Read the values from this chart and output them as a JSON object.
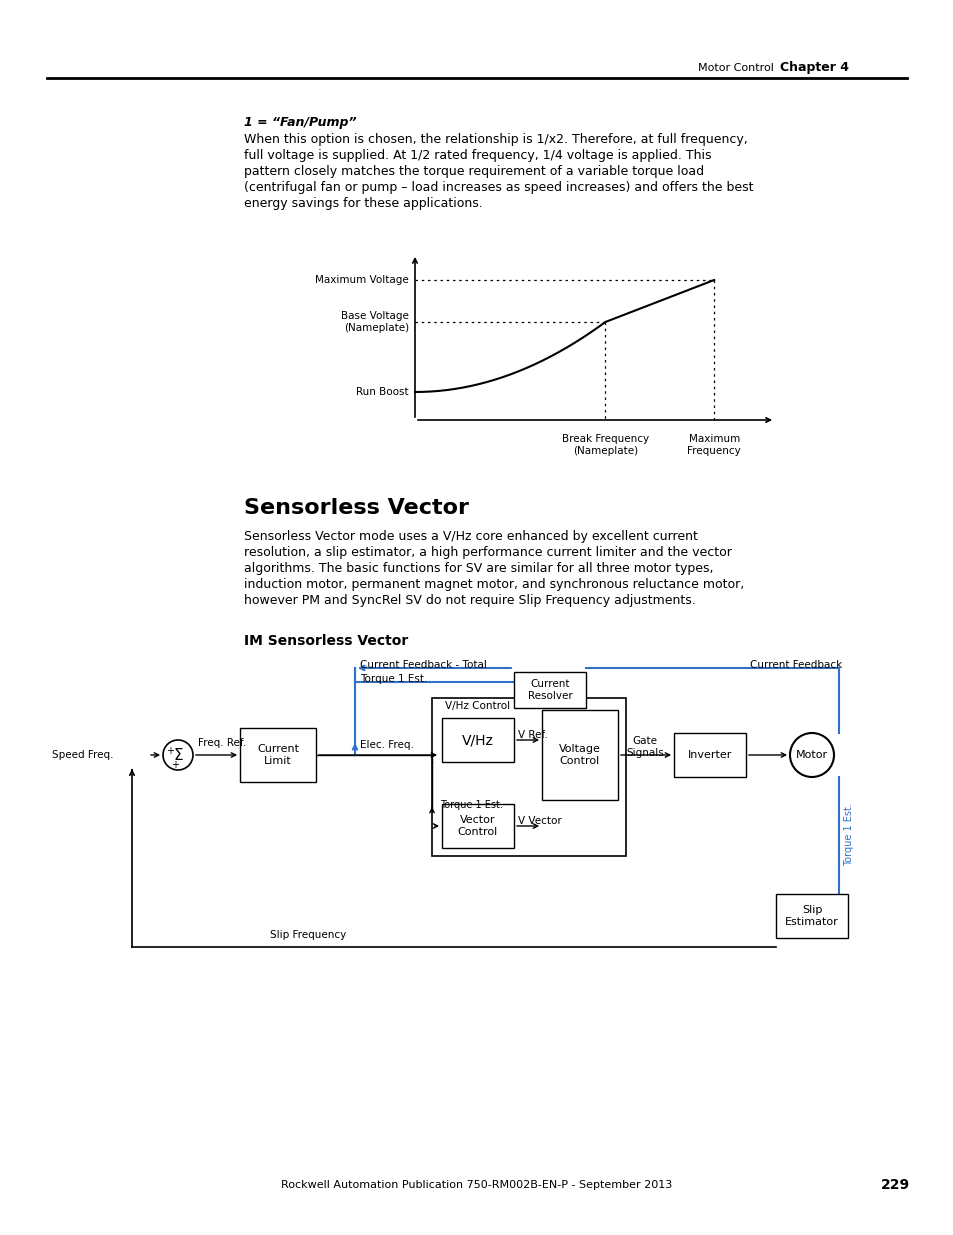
{
  "page_bg": "#ffffff",
  "header_text": "Motor Control",
  "header_bold": "Chapter 4",
  "footer_text": "Rockwell Automation Publication 750-RM002B-EN-P - September 2013",
  "footer_page": "229",
  "section1_title": "1 = “Fan/Pump”",
  "section1_body": "When this option is chosen, the relationship is 1/x2. Therefore, at full frequency,\nfull voltage is supplied. At 1/2 rated frequency, 1/4 voltage is applied. This\npattern closely matches the torque requirement of a variable torque load\n(centrifugal fan or pump – load increases as speed increases) and offers the best\nenergy savings for these applications.",
  "curve_labels": {
    "max_voltage": "Maximum Voltage",
    "base_voltage": "Base Voltage\n(Nameplate)",
    "run_boost": "Run Boost",
    "break_freq": "Break Frequency\n(Nameplate)",
    "max_freq": "Maximum\nFrequency"
  },
  "section2_title": "Sensorless Vector",
  "section2_body": "Sensorless Vector mode uses a V/Hz core enhanced by excellent current\nresolution, a slip estimator, a high performance current limiter and the vector\nalgorithms. The basic functions for SV are similar for all three motor types,\ninduction motor, permanent magnet motor, and synchronous reluctance motor,\nhowever PM and SyncRel SV do not require Slip Frequency adjustments.",
  "section3_title": "IM Sensorless Vector",
  "blue_color": "#3070c8",
  "text_color": "#000000"
}
